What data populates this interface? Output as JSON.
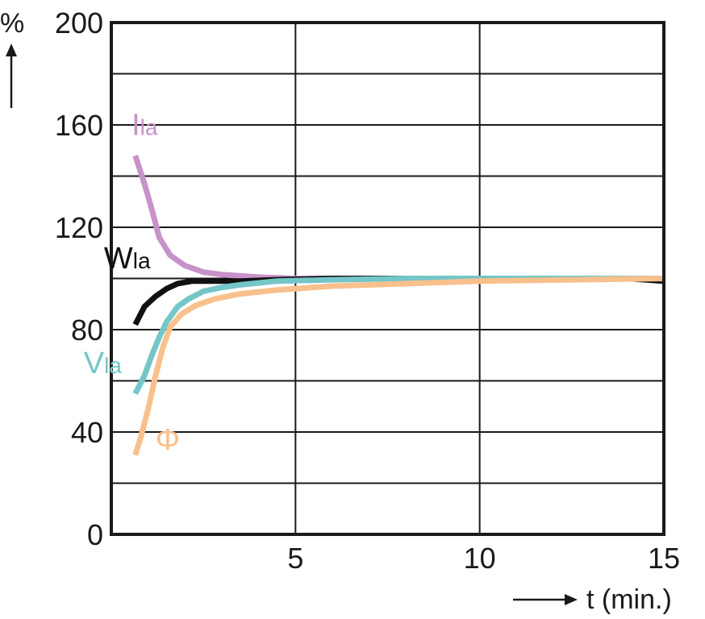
{
  "chart_data": {
    "type": "line",
    "title": "",
    "xlabel": "t (min.)",
    "ylabel": "%",
    "xlim": [
      0,
      15
    ],
    "ylim": [
      0,
      200
    ],
    "xticks": [
      5,
      10,
      15
    ],
    "yticks": [
      0,
      40,
      80,
      120,
      160,
      200
    ],
    "grid": true,
    "grid_y_step": 20,
    "series": [
      {
        "name": "Ila",
        "name_main": "I",
        "name_sub": "la",
        "color": "#c792c9",
        "x": [
          0.65,
          0.9,
          1.1,
          1.3,
          1.6,
          2.0,
          2.5,
          3.0,
          3.5,
          4.0,
          5.0,
          7.0,
          10.0,
          15.0
        ],
        "y": [
          148,
          137,
          127,
          116,
          109,
          105,
          102.5,
          101.5,
          101,
          100.5,
          100,
          100,
          100,
          100
        ]
      },
      {
        "name": "Wla",
        "name_main": "W",
        "name_sub": "la",
        "color": "#111111",
        "x": [
          0.65,
          0.9,
          1.2,
          1.5,
          1.8,
          2.2,
          2.8,
          3.5,
          4.5,
          6.0,
          8.0,
          10.0,
          12.0,
          14.0,
          15.0
        ],
        "y": [
          82,
          89,
          93,
          96,
          98,
          99,
          99,
          99,
          99.5,
          100,
          100,
          100,
          100,
          100,
          99
        ]
      },
      {
        "name": "Vla",
        "name_main": "V",
        "name_sub": "la",
        "color": "#74c6c8",
        "x": [
          0.65,
          0.9,
          1.1,
          1.3,
          1.5,
          1.8,
          2.1,
          2.5,
          3.0,
          3.5,
          4.5,
          6.0,
          8.0,
          10.0,
          15.0
        ],
        "y": [
          55,
          62,
          70,
          77,
          83,
          89,
          92,
          95,
          96.5,
          97.5,
          99,
          99.5,
          100,
          100,
          100
        ]
      },
      {
        "name": "Φ",
        "name_main": "Φ",
        "name_sub": "",
        "color": "#f8c08c",
        "x": [
          0.65,
          0.8,
          1.0,
          1.2,
          1.4,
          1.6,
          1.9,
          2.3,
          2.8,
          3.5,
          4.5,
          6.0,
          8.0,
          10.0,
          15.0
        ],
        "y": [
          31,
          38,
          49,
          62,
          73,
          81,
          86,
          89.5,
          92,
          94,
          95.5,
          97,
          98,
          99,
          100
        ]
      }
    ],
    "annotations": [
      {
        "series": "Ila",
        "x": 0.55,
        "y": 156
      },
      {
        "series": "Wla",
        "x": -0.2,
        "y": 104
      },
      {
        "series": "Vla",
        "x": -0.75,
        "y": 63
      },
      {
        "series": "Φ",
        "x": 1.2,
        "y": 33
      }
    ]
  }
}
